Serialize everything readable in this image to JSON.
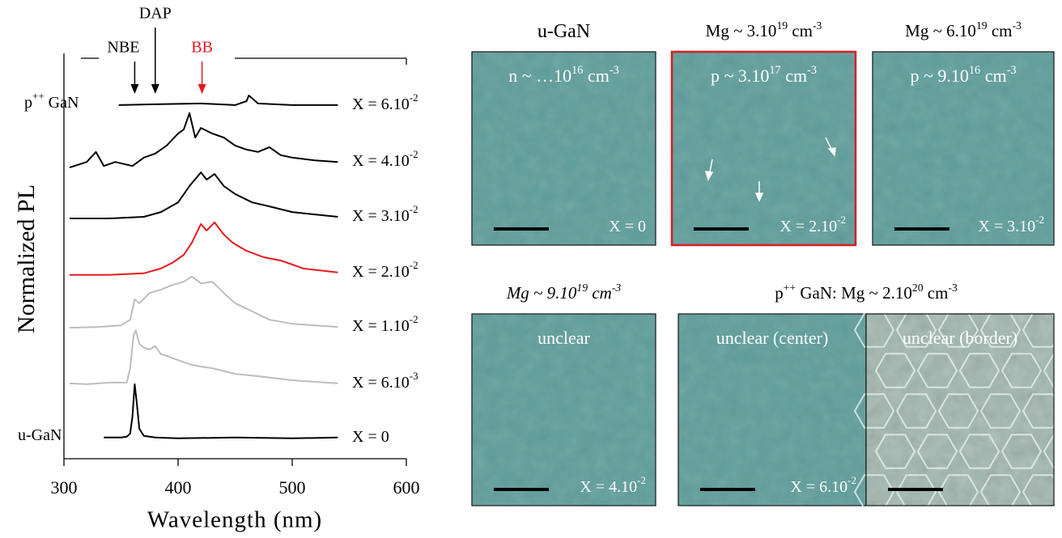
{
  "chart_data": {
    "type": "line",
    "ylabel": "Normalized PL",
    "xlabel": "Wavelength (nm)",
    "xlim": [
      300,
      600
    ],
    "ylim": [
      0,
      100
    ],
    "xticks": [
      300,
      400,
      500,
      600
    ],
    "annotations": [
      {
        "text": "NBE",
        "x": 362,
        "color": "#000000"
      },
      {
        "text": "DAP",
        "x": 380,
        "color": "#000000"
      },
      {
        "text": "BB",
        "x": 421,
        "color": "#e8191e"
      }
    ],
    "series": [
      {
        "name": [
          "u-GaN"
        ],
        "label": [
          "X = 0"
        ],
        "color": "#000000",
        "x": [
          335,
          350,
          355,
          358,
          360,
          362,
          364,
          366,
          370,
          380,
          400,
          450,
          500,
          540
        ],
        "values": [
          5.3,
          5.3,
          5.5,
          6.3,
          10.5,
          18.6,
          13.5,
          7.5,
          5.7,
          5.3,
          5.1,
          5.3,
          5.1,
          5.3
        ]
      },
      {
        "label": [
          "X = 6.10",
          "-3"
        ],
        "color": "#bdbdbd",
        "x": [
          305,
          320,
          340,
          355,
          358,
          361,
          363,
          366,
          370,
          375,
          380,
          385,
          390,
          400,
          410,
          420,
          430,
          450,
          470,
          500,
          520,
          540
        ],
        "values": [
          18.8,
          18.6,
          19.0,
          19.0,
          22.6,
          30.7,
          32.1,
          28.7,
          27.7,
          27.3,
          28.1,
          26.1,
          25.7,
          24.6,
          23.6,
          23.0,
          22.6,
          21.2,
          20.6,
          19.6,
          19.2,
          18.8
        ]
      },
      {
        "label": [
          "X = 1.10",
          "-2"
        ],
        "color": "#bdbdbd",
        "x": [
          305,
          330,
          350,
          358,
          362,
          366,
          375,
          385,
          395,
          405,
          412,
          420,
          430,
          440,
          450,
          465,
          480,
          500,
          520,
          540
        ],
        "values": [
          32.7,
          32.9,
          33.3,
          34.7,
          39.8,
          38.8,
          41.4,
          42.2,
          43.4,
          44.2,
          45.5,
          43.8,
          44.2,
          41.4,
          38.8,
          36.8,
          34.7,
          33.7,
          33.3,
          32.9
        ]
      },
      {
        "label": [
          "X = 2.10",
          "-2"
        ],
        "color": "#e8191e",
        "x": [
          305,
          340,
          370,
          385,
          395,
          405,
          412,
          420,
          425,
          432,
          440,
          448,
          460,
          475,
          490,
          510,
          540
        ],
        "values": [
          45.9,
          45.9,
          46.3,
          47.5,
          48.9,
          50.9,
          53.9,
          58.6,
          57.0,
          59.0,
          56.0,
          53.9,
          51.9,
          50.3,
          49.5,
          47.5,
          46.5
        ]
      },
      {
        "label": [
          "X = 3.10",
          "-2"
        ],
        "color": "#000000",
        "x": [
          305,
          340,
          370,
          385,
          400,
          410,
          420,
          425,
          432,
          440,
          450,
          465,
          480,
          500,
          520,
          540
        ],
        "values": [
          60.0,
          60.0,
          60.4,
          61.6,
          64.0,
          68.1,
          71.5,
          69.7,
          71.1,
          68.1,
          66.1,
          64.0,
          63.0,
          61.6,
          61.0,
          60.4
        ]
      },
      {
        "label": [
          "X = 4.10",
          "-2"
        ],
        "color": "#000000",
        "x": [
          305,
          320,
          328,
          335,
          345,
          360,
          370,
          380,
          390,
          400,
          405,
          410,
          415,
          420,
          430,
          440,
          450,
          460,
          470,
          480,
          490,
          500,
          520,
          540
        ],
        "values": [
          72.7,
          74.1,
          76.6,
          73.1,
          74.1,
          73.1,
          75.2,
          76.2,
          78.2,
          81.2,
          82.2,
          86.3,
          80.2,
          82.6,
          81.2,
          80.2,
          78.2,
          77.2,
          76.6,
          77.8,
          75.8,
          75.2,
          74.5,
          74.1
        ]
      },
      {
        "name": [
          "p",
          "++",
          " GaN"
        ],
        "label": [
          "X = 6.10",
          "-2"
        ],
        "color": "#000000",
        "x": [
          348,
          380,
          420,
          450,
          460,
          462,
          470,
          500,
          540
        ],
        "values": [
          88.3,
          88.5,
          88.7,
          88.3,
          89.3,
          90.7,
          88.7,
          88.3,
          88.3
        ]
      }
    ]
  },
  "images": [
    {
      "title": [
        "u-GaN"
      ],
      "inner": [
        "n ~ …10",
        "16",
        " cm",
        "-3"
      ],
      "xlabel": [
        "X = 0"
      ]
    },
    {
      "title": [
        "Mg ~ 3.10",
        "19",
        " cm",
        "-3"
      ],
      "inner": [
        "p ~ 3.10",
        "17",
        " cm",
        "-3"
      ],
      "xlabel": [
        "X = 2.10",
        "-2"
      ],
      "highlight": "#d81e1e"
    },
    {
      "title": [
        "Mg ~ 6.10",
        "19",
        " cm",
        "-3"
      ],
      "inner": [
        "p ~ 9.10",
        "16",
        " cm",
        "-3"
      ],
      "xlabel": [
        "X = 3.10",
        "-2"
      ]
    },
    {
      "title": [
        "Mg ~ 9.10",
        "19",
        " cm",
        "-3"
      ],
      "italic": true,
      "inner": [
        "unclear"
      ],
      "xlabel": [
        "X = 4.10",
        "-2"
      ]
    },
    {
      "title": [
        "p",
        "++",
        " GaN: Mg ~ 2.10",
        "20",
        " cm",
        "-3"
      ],
      "inner": [
        "unclear (center)"
      ],
      "xlabel": [
        "X = 6.10",
        "-2"
      ]
    },
    {
      "inner": [
        "unclear (border)"
      ]
    }
  ]
}
